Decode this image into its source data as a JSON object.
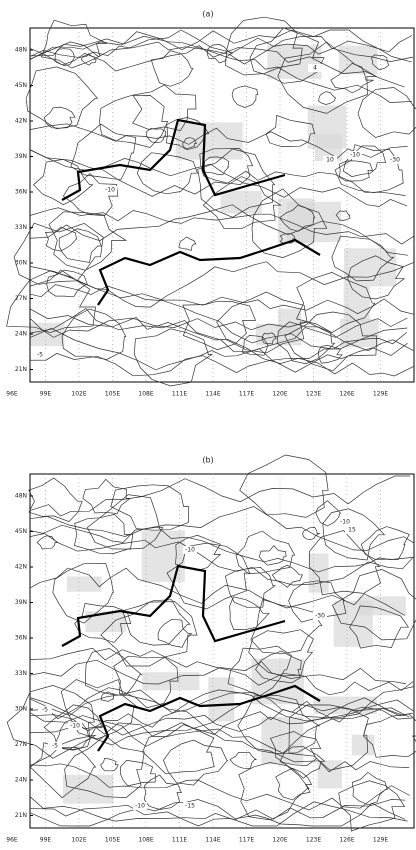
{
  "panels": [
    {
      "title": "(a)",
      "lat_labels": [
        "48N",
        "45N",
        "42N",
        "39N",
        "36N",
        "33N",
        "30N",
        "27N",
        "24N",
        "21N"
      ],
      "lon_labels": [
        "96E",
        "99E",
        "102E",
        "105E",
        "108E",
        "111E",
        "114E",
        "117E",
        "120E",
        "123E",
        "126E",
        "129E"
      ],
      "contour_labels": [
        "4",
        "-10",
        "10",
        "-10",
        "-30",
        "-5"
      ]
    },
    {
      "title": "(b)",
      "lat_labels": [
        "48N",
        "45N",
        "42N",
        "39N",
        "36N",
        "33N",
        "30N",
        "27N",
        "24N",
        "21N"
      ],
      "lon_labels": [
        "96E",
        "99E",
        "102E",
        "105E",
        "108E",
        "111E",
        "114E",
        "117E",
        "120E",
        "123E",
        "126E",
        "129E"
      ],
      "contour_labels": [
        "-10",
        "15",
        "-10",
        "-30",
        "-5",
        "-10",
        "-5",
        "-10",
        "-15"
      ]
    }
  ]
}
